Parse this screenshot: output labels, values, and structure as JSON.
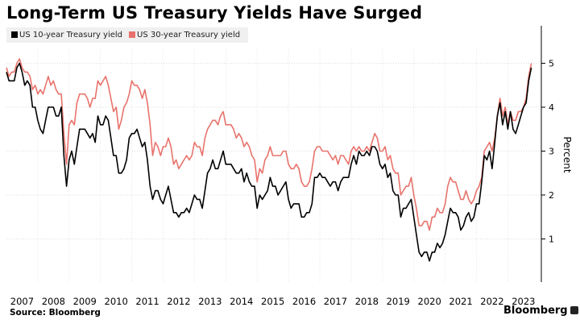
{
  "chart_data": {
    "type": "line",
    "title": "Long-Term US Treasury Yields Have Surged",
    "ylabel": "Percent",
    "xlabel": "",
    "ylim": [
      0,
      5.8
    ],
    "xlim": [
      2007.0,
      2023.85
    ],
    "yticks": [
      "1",
      "2",
      "3",
      "4",
      "5"
    ],
    "xticks": [
      "2007",
      "2008",
      "2009",
      "2010",
      "2011",
      "2012",
      "2013",
      "2014",
      "2015",
      "2016",
      "2017",
      "2018",
      "2019",
      "2020",
      "2021",
      "2022",
      "2023"
    ],
    "x_start": 2007.0,
    "x_step_months": 1,
    "legend_position": "top-left",
    "series": [
      {
        "name": "US 10-year Treasury yield",
        "color": "#000000",
        "values": [
          4.8,
          4.6,
          4.6,
          4.6,
          4.9,
          5.0,
          4.8,
          4.5,
          4.6,
          4.5,
          4.0,
          4.0,
          3.7,
          3.5,
          3.4,
          3.7,
          4.0,
          4.0,
          4.0,
          3.8,
          3.8,
          4.0,
          2.9,
          2.2,
          2.8,
          3.0,
          2.7,
          3.1,
          3.5,
          3.5,
          3.5,
          3.4,
          3.3,
          3.4,
          3.2,
          3.8,
          3.6,
          3.6,
          3.8,
          3.7,
          3.3,
          2.9,
          2.9,
          2.5,
          2.5,
          2.6,
          2.8,
          3.3,
          3.4,
          3.4,
          3.5,
          3.3,
          3.1,
          3.2,
          2.8,
          2.2,
          1.9,
          2.1,
          2.1,
          1.9,
          1.8,
          2.0,
          2.2,
          1.9,
          1.6,
          1.6,
          1.5,
          1.6,
          1.6,
          1.7,
          1.6,
          1.8,
          2.0,
          1.9,
          1.9,
          1.7,
          2.1,
          2.5,
          2.6,
          2.8,
          2.6,
          2.6,
          2.8,
          3.0,
          2.7,
          2.7,
          2.7,
          2.6,
          2.5,
          2.5,
          2.6,
          2.3,
          2.5,
          2.3,
          2.2,
          2.2,
          1.7,
          2.0,
          1.9,
          2.0,
          2.1,
          2.4,
          2.2,
          2.2,
          2.0,
          2.1,
          2.2,
          2.3,
          1.9,
          1.7,
          1.8,
          1.8,
          1.8,
          1.5,
          1.5,
          1.6,
          1.6,
          1.8,
          2.4,
          2.4,
          2.5,
          2.4,
          2.4,
          2.3,
          2.2,
          2.3,
          2.3,
          2.1,
          2.3,
          2.4,
          2.4,
          2.4,
          2.7,
          2.9,
          2.7,
          3.0,
          2.9,
          2.9,
          3.0,
          2.9,
          3.1,
          3.1,
          3.0,
          2.7,
          2.6,
          2.7,
          2.4,
          2.5,
          2.1,
          2.0,
          2.0,
          1.5,
          1.7,
          1.7,
          1.8,
          1.9,
          1.5,
          1.1,
          0.7,
          0.6,
          0.7,
          0.7,
          0.5,
          0.7,
          0.7,
          0.9,
          0.8,
          0.9,
          1.1,
          1.4,
          1.7,
          1.6,
          1.6,
          1.5,
          1.2,
          1.3,
          1.5,
          1.6,
          1.4,
          1.5,
          1.8,
          1.8,
          2.3,
          2.9,
          2.8,
          3.0,
          2.6,
          3.2,
          3.8,
          4.1,
          3.6,
          3.9,
          3.5,
          3.9,
          3.5,
          3.4,
          3.6,
          3.8,
          4.0,
          4.1,
          4.6,
          4.9
        ]
      },
      {
        "name": "US 30-year Treasury yield",
        "color": "#e8736c",
        "values": [
          4.9,
          4.7,
          4.8,
          4.8,
          5.0,
          5.1,
          4.9,
          4.8,
          4.8,
          4.7,
          4.4,
          4.5,
          4.3,
          4.4,
          4.3,
          4.5,
          4.7,
          4.5,
          4.6,
          4.4,
          4.3,
          4.3,
          3.4,
          2.7,
          3.6,
          3.7,
          3.6,
          4.1,
          4.3,
          4.3,
          4.3,
          4.2,
          4.0,
          4.2,
          4.2,
          4.6,
          4.5,
          4.6,
          4.7,
          4.5,
          4.2,
          3.9,
          4.0,
          3.5,
          3.7,
          4.0,
          4.1,
          4.3,
          4.6,
          4.5,
          4.5,
          4.4,
          4.2,
          4.4,
          4.1,
          3.6,
          2.9,
          3.2,
          3.1,
          2.9,
          3.1,
          3.1,
          3.3,
          3.1,
          2.7,
          2.8,
          2.6,
          2.7,
          2.8,
          2.9,
          2.8,
          2.9,
          3.2,
          3.1,
          3.1,
          2.9,
          3.3,
          3.5,
          3.6,
          3.7,
          3.7,
          3.6,
          3.8,
          3.9,
          3.6,
          3.6,
          3.6,
          3.5,
          3.3,
          3.4,
          3.3,
          3.1,
          3.2,
          3.1,
          2.9,
          2.8,
          2.3,
          2.6,
          2.5,
          2.8,
          2.9,
          3.1,
          2.9,
          2.9,
          2.9,
          2.9,
          3.0,
          3.0,
          2.7,
          2.6,
          2.6,
          2.7,
          2.6,
          2.3,
          2.2,
          2.2,
          2.3,
          2.6,
          3.0,
          3.1,
          3.1,
          3.0,
          3.0,
          3.0,
          2.9,
          2.8,
          2.9,
          2.7,
          2.9,
          2.9,
          2.8,
          2.7,
          3.0,
          3.1,
          3.0,
          3.1,
          3.0,
          3.0,
          3.1,
          3.0,
          3.2,
          3.4,
          3.3,
          3.0,
          3.0,
          3.1,
          2.8,
          2.9,
          2.6,
          2.5,
          2.5,
          2.0,
          2.1,
          2.2,
          2.2,
          2.4,
          2.0,
          1.7,
          1.3,
          1.3,
          1.4,
          1.4,
          1.2,
          1.5,
          1.5,
          1.7,
          1.6,
          1.6,
          1.8,
          2.2,
          2.4,
          2.3,
          2.3,
          2.1,
          1.9,
          1.9,
          2.1,
          1.9,
          1.8,
          1.9,
          2.1,
          2.2,
          2.4,
          3.0,
          3.1,
          3.2,
          3.0,
          3.3,
          3.8,
          4.2,
          3.8,
          4.0,
          3.6,
          3.9,
          3.7,
          3.7,
          3.9,
          3.9,
          4.0,
          4.2,
          4.7,
          5.0
        ]
      }
    ]
  },
  "footer": {
    "source": "Source: Bloomberg",
    "brand": "Bloomberg"
  }
}
